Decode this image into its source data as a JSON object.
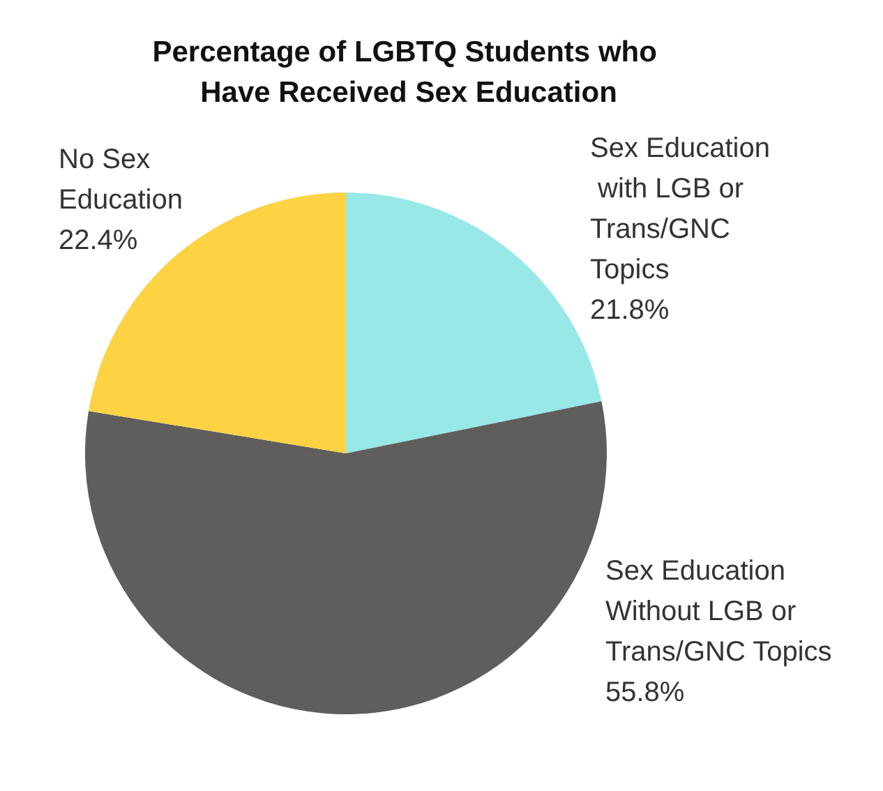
{
  "chart_data": {
    "type": "pie",
    "title": "Percentage of LGBTQ Students who Have Received Sex Education",
    "categories": [
      "Sex Education with LGB or Trans/GNC Topics",
      "Sex Education Without LGB or Trans/GNC Topics",
      "No Sex Education"
    ],
    "values": [
      21.8,
      55.8,
      22.4
    ],
    "colors": [
      "#99e8e8",
      "#5f5e5c",
      "#fdd344"
    ],
    "value_labels": [
      "21.8%",
      "55.8%",
      "22.4%"
    ],
    "legend": false
  }
}
